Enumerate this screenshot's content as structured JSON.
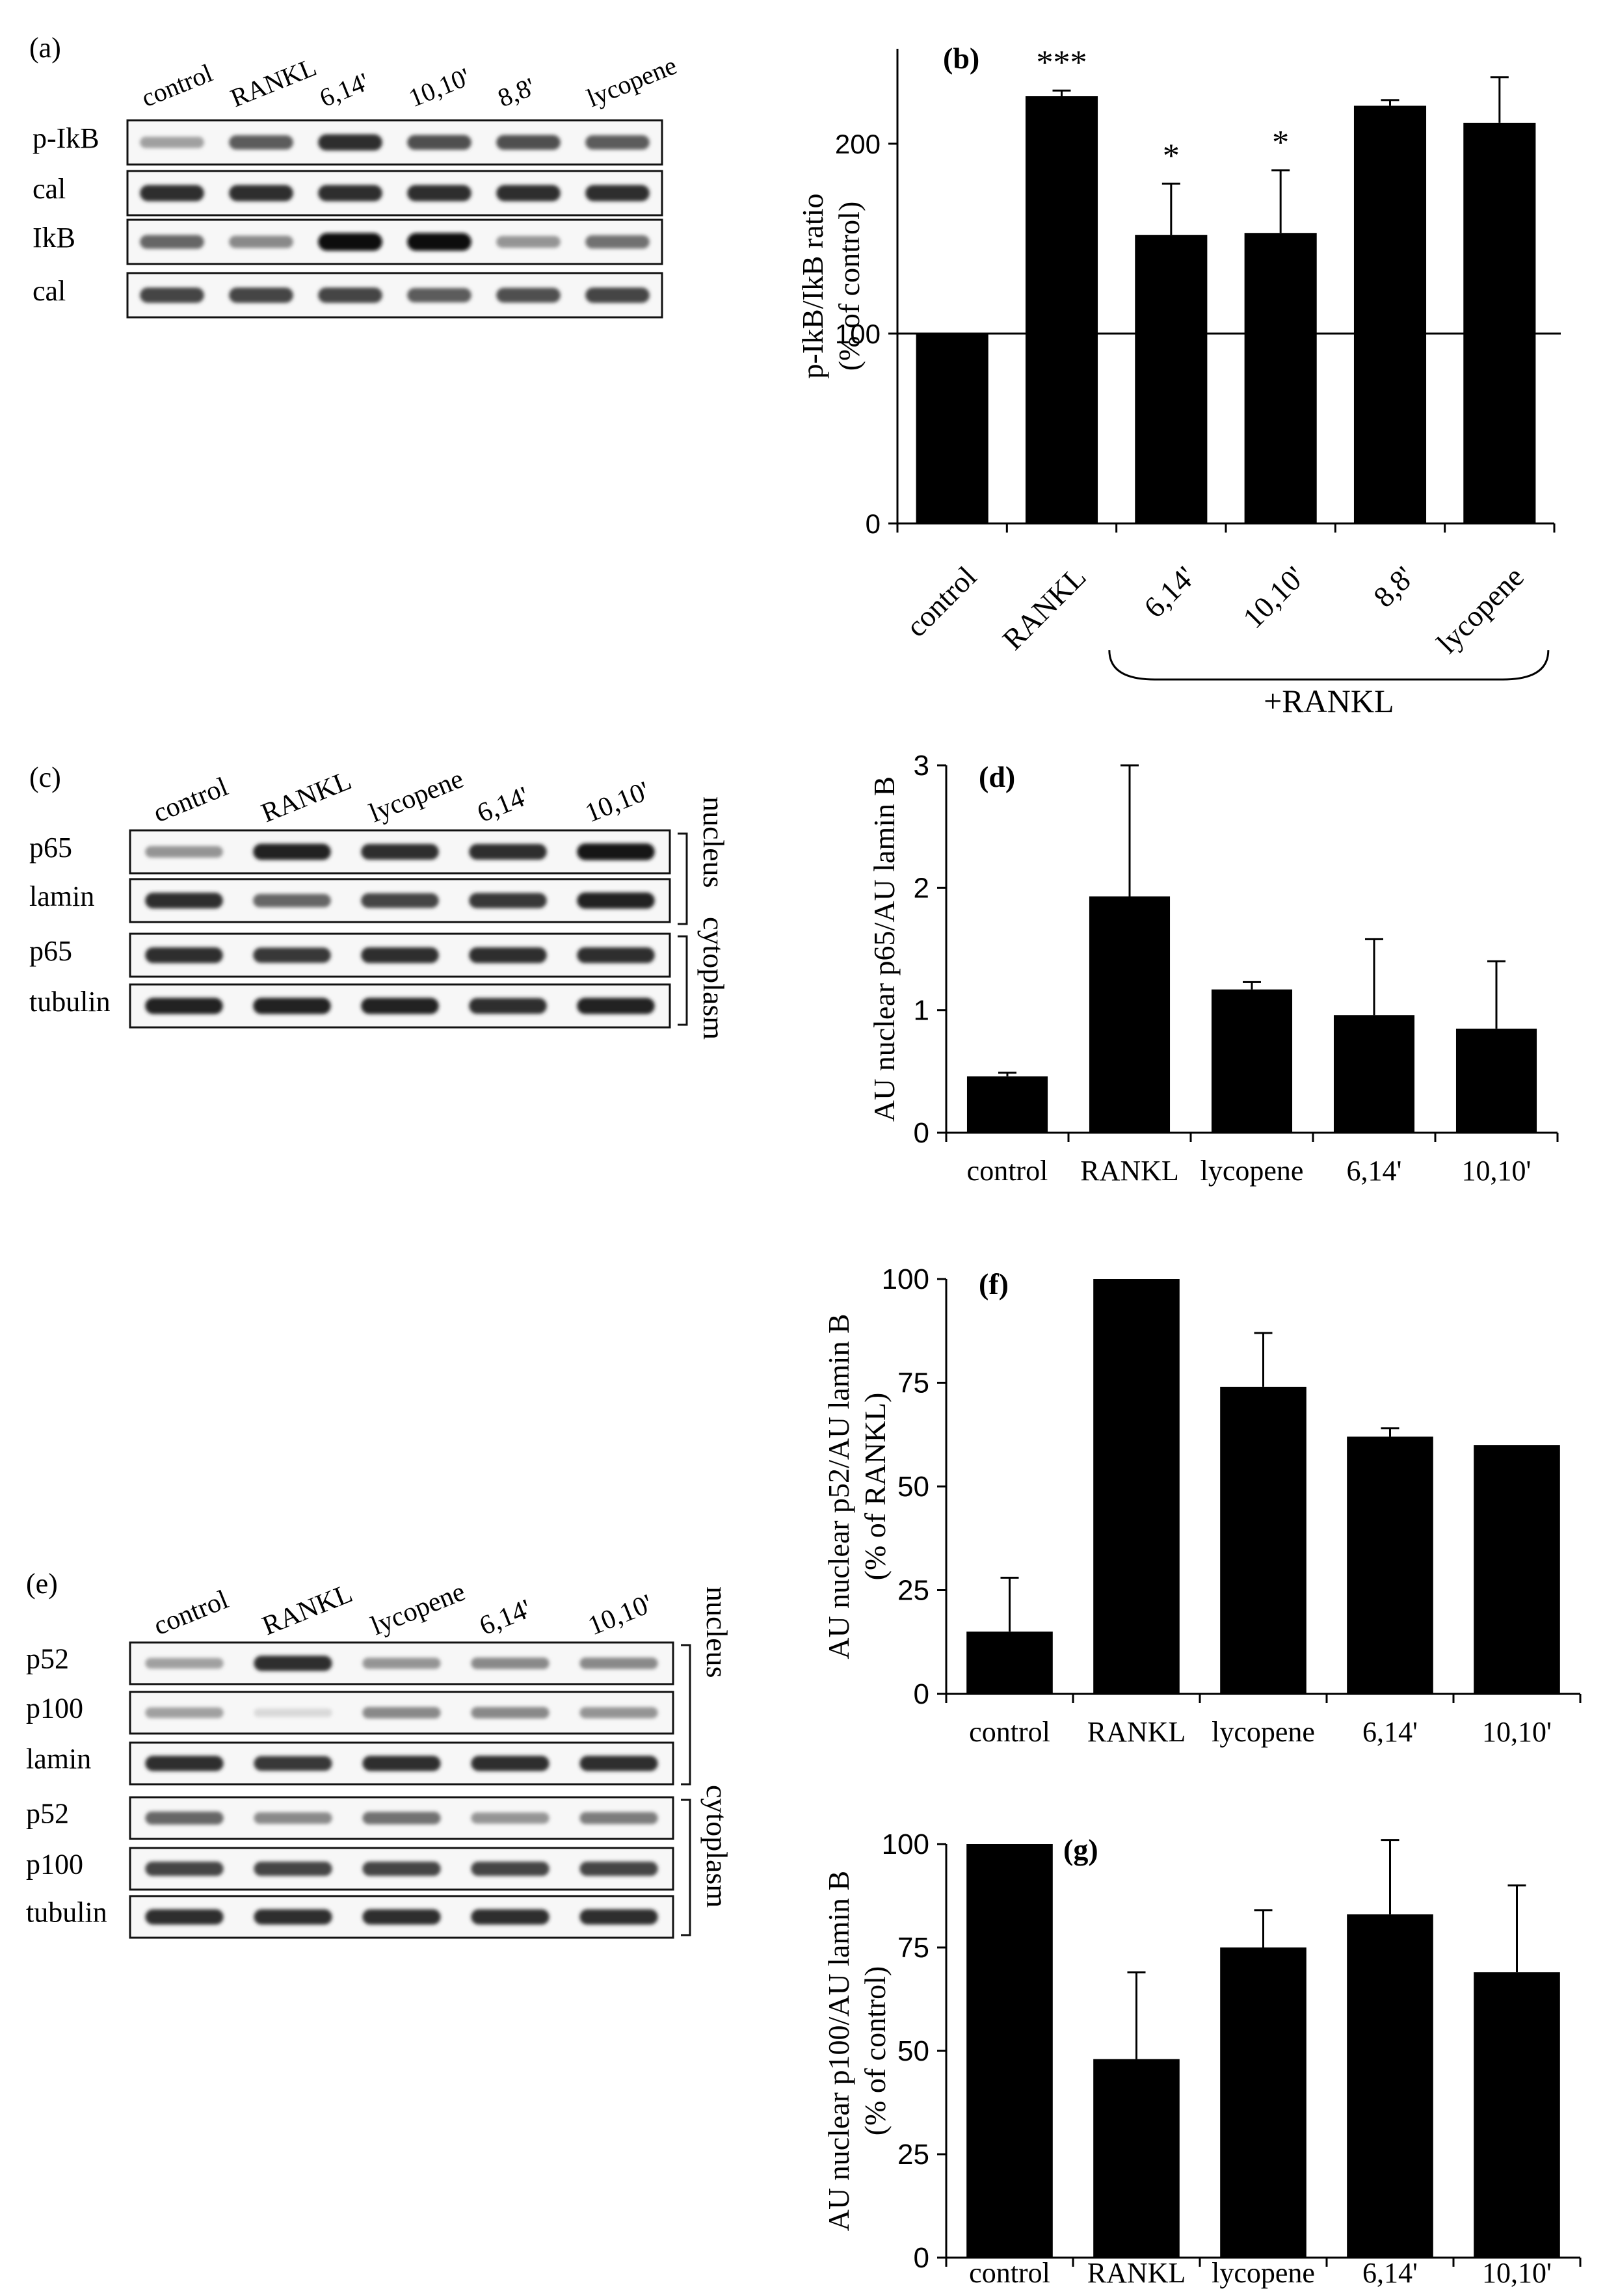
{
  "panels": {
    "a": {
      "label": "(a)",
      "lanes": [
        "control",
        "RANKL",
        "6,14'",
        "10,10'",
        "8,8'",
        "lycopene"
      ],
      "rows": [
        "p-IkB",
        "cal",
        "IkB",
        "cal"
      ],
      "intensity": [
        [
          0.35,
          0.65,
          0.85,
          0.7,
          0.7,
          0.65
        ],
        [
          0.85,
          0.85,
          0.85,
          0.85,
          0.85,
          0.85
        ],
        [
          0.6,
          0.45,
          1.0,
          1.0,
          0.4,
          0.55
        ],
        [
          0.75,
          0.75,
          0.75,
          0.65,
          0.7,
          0.75
        ]
      ]
    },
    "c": {
      "label": "(c)",
      "lanes": [
        "control",
        "RANKL",
        "lycopene",
        "6,14'",
        "10,10'"
      ],
      "rows": [
        "p65",
        "lamin",
        "p65",
        "tubulin"
      ],
      "intensity": [
        [
          0.4,
          0.9,
          0.85,
          0.85,
          0.95
        ],
        [
          0.85,
          0.6,
          0.75,
          0.8,
          0.9
        ],
        [
          0.85,
          0.8,
          0.85,
          0.85,
          0.85
        ],
        [
          0.9,
          0.9,
          0.9,
          0.85,
          0.9
        ]
      ],
      "brackets": [
        "nucleus",
        "cytoplasm"
      ]
    },
    "e": {
      "label": "(e)",
      "lanes": [
        "control",
        "RANKL",
        "lycopene",
        "6,14'",
        "10,10'"
      ],
      "rows": [
        "p52",
        "p100",
        "lamin",
        "p52",
        "p100",
        "tubulin"
      ],
      "intensity": [
        [
          0.35,
          0.85,
          0.4,
          0.45,
          0.45
        ],
        [
          0.35,
          0.1,
          0.45,
          0.45,
          0.4
        ],
        [
          0.85,
          0.8,
          0.85,
          0.85,
          0.85
        ],
        [
          0.6,
          0.45,
          0.55,
          0.4,
          0.5
        ],
        [
          0.75,
          0.75,
          0.75,
          0.75,
          0.75
        ],
        [
          0.85,
          0.85,
          0.85,
          0.85,
          0.85
        ]
      ],
      "brackets": [
        "nucleus",
        "cytoplasm"
      ]
    }
  },
  "chart_data": [
    {
      "panel": "(b)",
      "type": "bar",
      "categories": [
        "control",
        "RANKL",
        "6,14'",
        "10,10'",
        "8,8'",
        "lycopene"
      ],
      "values": [
        100,
        225,
        152,
        153,
        220,
        211
      ],
      "errors": [
        0,
        3,
        27,
        33,
        3,
        24
      ],
      "significance": [
        "",
        "***",
        "*",
        "*",
        "",
        ""
      ],
      "ylabel": [
        "p-IkB/IkB ratio",
        "(% of control)"
      ],
      "yticks": [
        0,
        100,
        200
      ],
      "ylim": [
        0,
        250
      ],
      "reference_line": 100,
      "group_label": "+RANKL",
      "grid": false
    },
    {
      "panel": "(d)",
      "type": "bar",
      "categories": [
        "control",
        "RANKL",
        "lycopene",
        "6,14'",
        "10,10'"
      ],
      "values": [
        0.46,
        1.93,
        1.17,
        0.96,
        0.85
      ],
      "errors": [
        0.03,
        1.07,
        0.06,
        0.62,
        0.55
      ],
      "ylabel": [
        "AU nuclear p65/AU lamin B"
      ],
      "yticks": [
        0,
        1,
        2,
        3
      ],
      "ylim": [
        0,
        3
      ],
      "grid": false
    },
    {
      "panel": "(f)",
      "type": "bar",
      "categories": [
        "control",
        "RANKL",
        "lycopene",
        "6,14'",
        "10,10'"
      ],
      "values": [
        15,
        100,
        74,
        62,
        60
      ],
      "errors": [
        13,
        0,
        13,
        2,
        0
      ],
      "ylabel": [
        "AU nuclear p52/AU lamin B",
        "(% of RANKL)"
      ],
      "yticks": [
        0,
        25,
        50,
        75,
        100
      ],
      "ylim": [
        0,
        100
      ],
      "grid": false
    },
    {
      "panel": "(g)",
      "type": "bar",
      "categories": [
        "control",
        "RANKL",
        "lycopene",
        "6,14'",
        "10,10'"
      ],
      "values": [
        100,
        48,
        75,
        83,
        69
      ],
      "errors": [
        0,
        21,
        9,
        18,
        21
      ],
      "ylabel": [
        "AU nuclear p100/AU lamin B",
        "(% of control)"
      ],
      "yticks": [
        0,
        25,
        50,
        75,
        100
      ],
      "ylim": [
        0,
        100
      ],
      "grid": false
    }
  ]
}
